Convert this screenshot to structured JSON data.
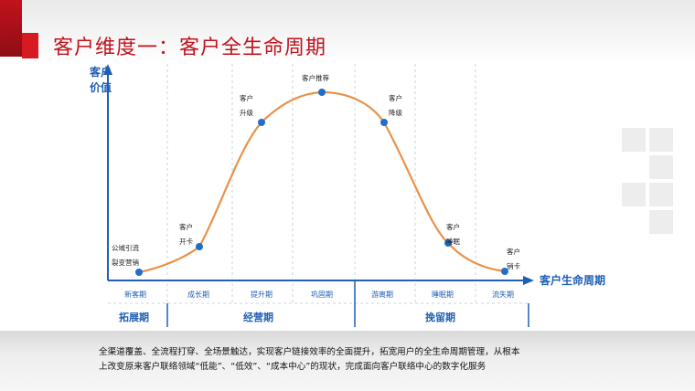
{
  "title": "客户维度一：客户全生命周期",
  "axes": {
    "y_label": [
      "客户",
      "价值"
    ],
    "x_label": "客户生命周期"
  },
  "points": [
    {
      "lines": [
        "公域引流",
        "裂变营销"
      ]
    },
    {
      "lines": [
        "客户",
        "开卡"
      ]
    },
    {
      "lines": [
        "客户",
        "升级"
      ]
    },
    {
      "lines": [
        "客户推荐"
      ]
    },
    {
      "lines": [
        "客户",
        "降级"
      ]
    },
    {
      "lines": [
        "客户",
        "睡眠"
      ]
    },
    {
      "lines": [
        "客户",
        "销卡"
      ]
    }
  ],
  "stages": [
    "新客期",
    "成长期",
    "提升期",
    "巩固期",
    "游离期",
    "睡眠期",
    "流失期"
  ],
  "phases": [
    "拓展期",
    "经营期",
    "挽留期"
  ],
  "caption": "全渠道覆盖、全流程打穿、全场景触达，实现客户链接效率的全面提升，拓宽用户的全生命周期管理，从根本\n上改变原来客户联络领域“低能”、“低效”、“成本中心”的现状，完成面向客户联络中心的数字化服务",
  "colors": {
    "curve": "#e8924a",
    "point": "#1f6fc9",
    "axis": "#1f5fb4",
    "title": "#c1121c"
  }
}
